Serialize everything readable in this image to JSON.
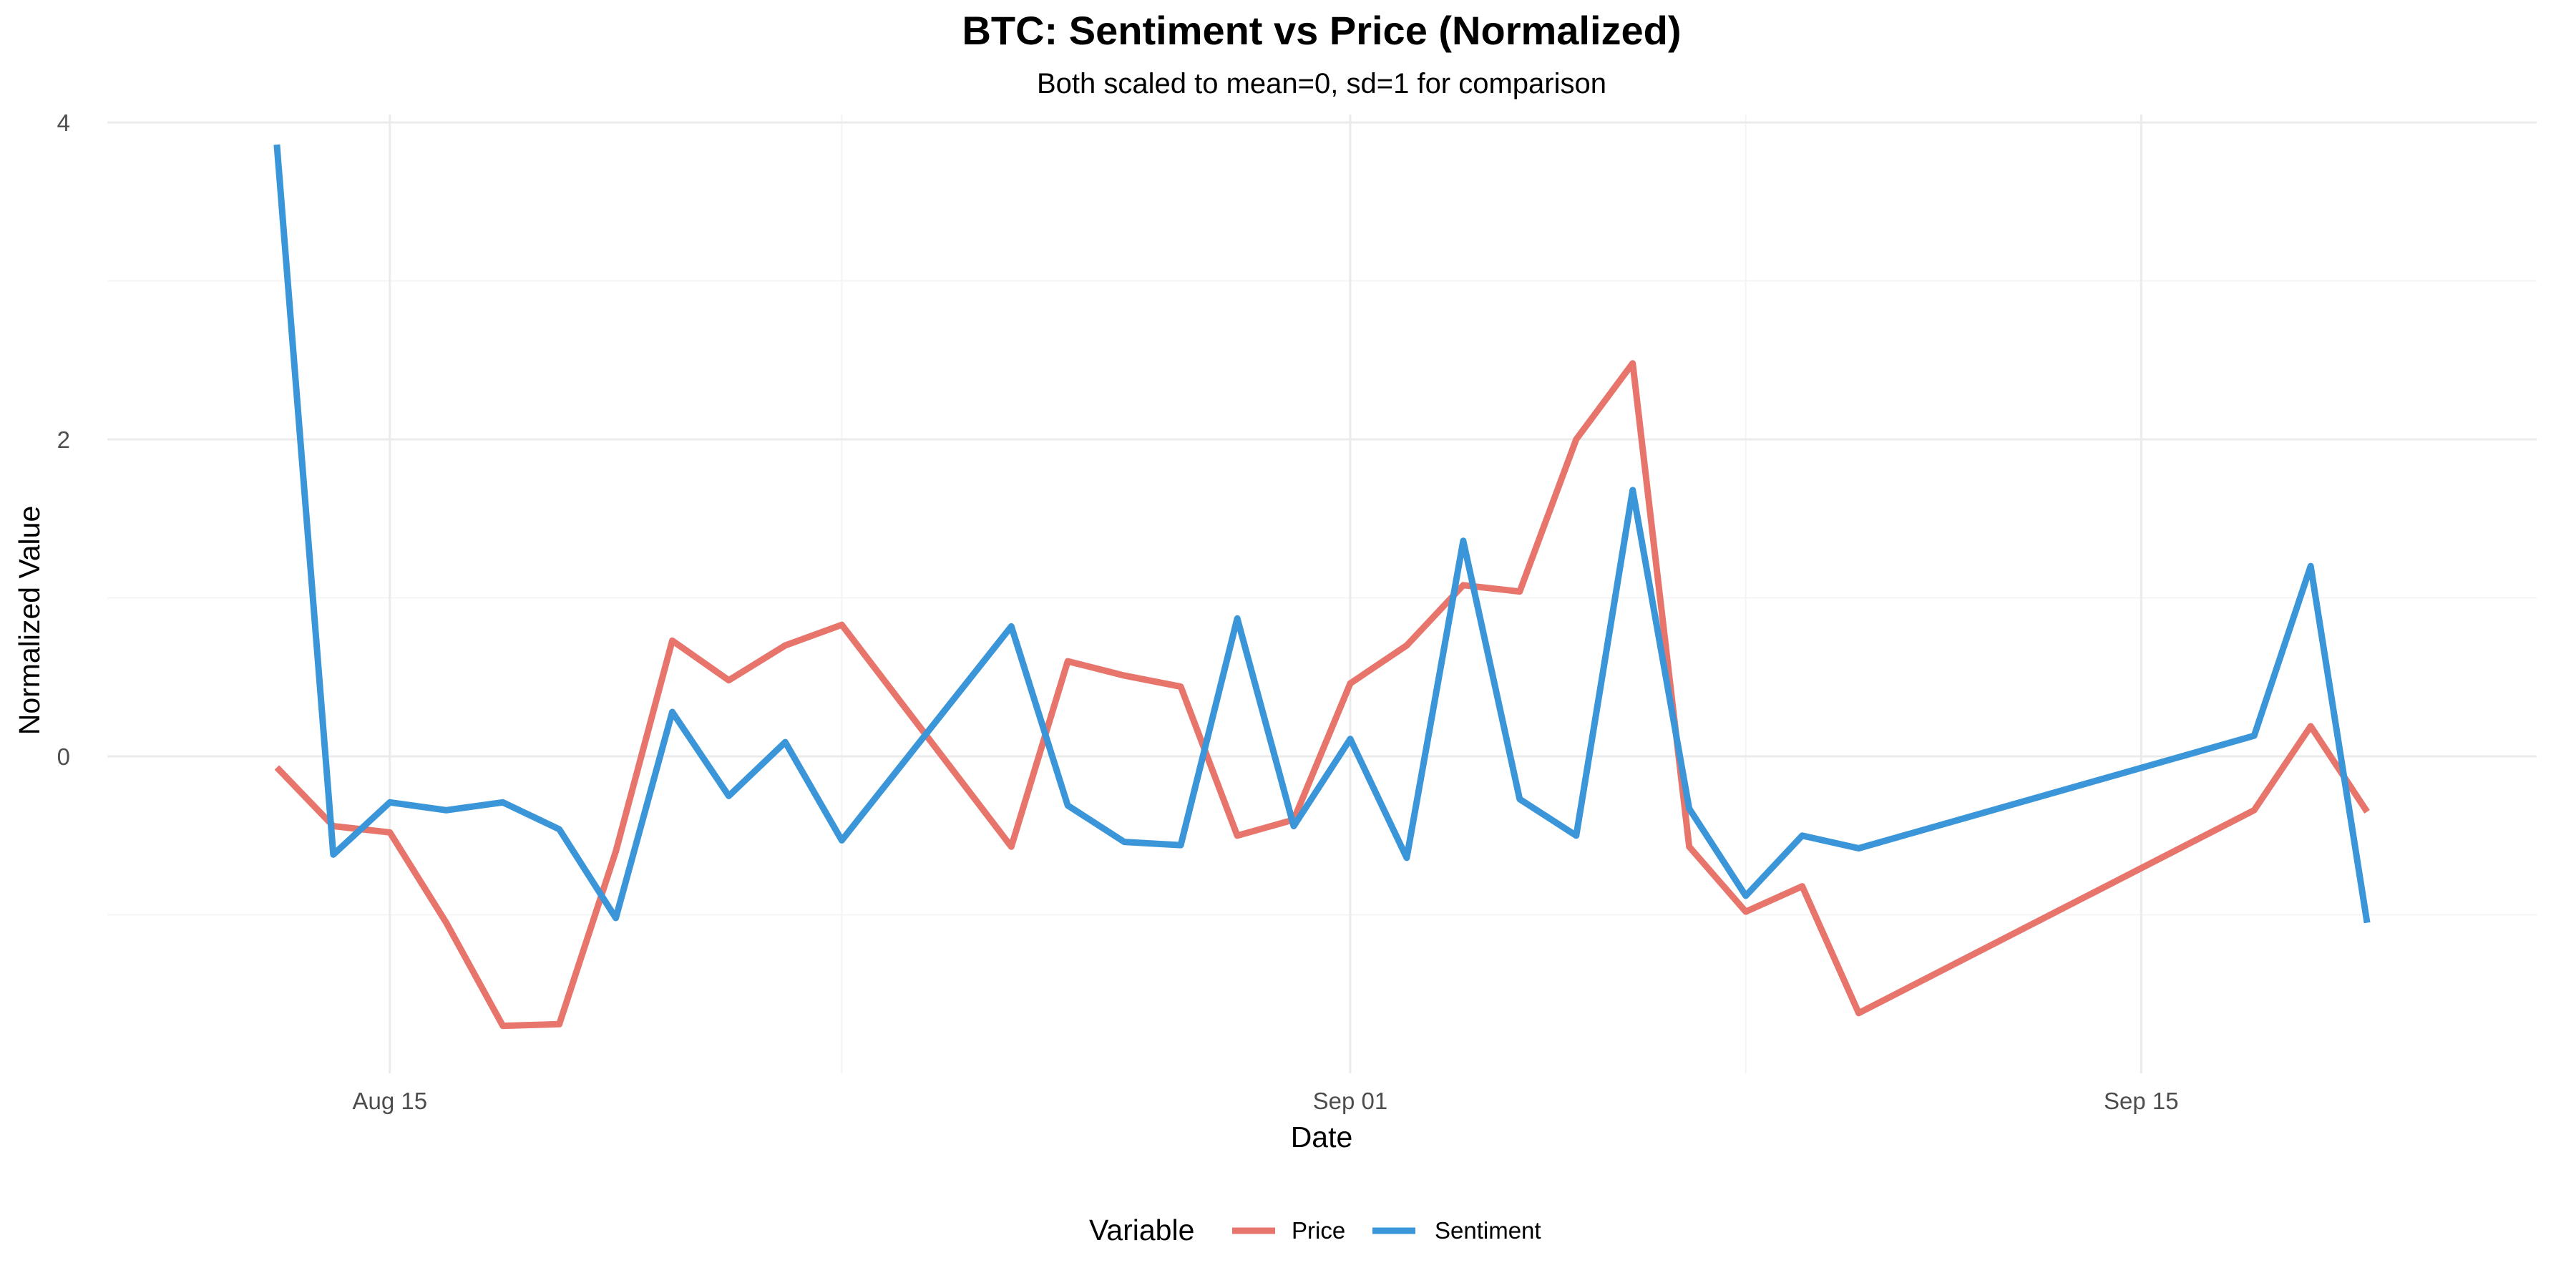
{
  "chart_data": {
    "type": "line",
    "title": "BTC: Sentiment vs Price (Normalized)",
    "subtitle": "Both scaled to mean=0, sd=1 for comparison",
    "xlabel": "Date",
    "ylabel": "Normalized Value",
    "x_type": "date",
    "xlim": [
      "2025-08-10",
      "2025-09-22"
    ],
    "ylim": [
      -2.0,
      4.05
    ],
    "x_ticks": [
      {
        "date": "2025-08-15",
        "label": "Aug 15"
      },
      {
        "date": "2025-09-01",
        "label": "Sep 01"
      },
      {
        "date": "2025-09-15",
        "label": "Sep 15"
      }
    ],
    "x_minor_ticks": [
      "2025-08-23",
      "2025-09-08"
    ],
    "y_ticks": [
      0,
      2,
      4
    ],
    "y_minor_ticks": [
      -1,
      1,
      3
    ],
    "grid": true,
    "legend": {
      "title": "Variable",
      "position": "bottom"
    },
    "series": [
      {
        "name": "Price",
        "color": "#e8756c",
        "points": [
          {
            "x": "2025-08-13",
            "y": -0.07
          },
          {
            "x": "2025-08-14",
            "y": -0.44
          },
          {
            "x": "2025-08-15",
            "y": -0.48
          },
          {
            "x": "2025-08-16",
            "y": -1.05
          },
          {
            "x": "2025-08-17",
            "y": -1.7
          },
          {
            "x": "2025-08-18",
            "y": -1.69
          },
          {
            "x": "2025-08-19",
            "y": -0.6
          },
          {
            "x": "2025-08-20",
            "y": 0.73
          },
          {
            "x": "2025-08-21",
            "y": 0.48
          },
          {
            "x": "2025-08-22",
            "y": 0.7
          },
          {
            "x": "2025-08-23",
            "y": 0.83
          },
          {
            "x": "2025-08-26",
            "y": -0.57
          },
          {
            "x": "2025-08-27",
            "y": 0.6
          },
          {
            "x": "2025-08-28",
            "y": 0.51
          },
          {
            "x": "2025-08-29",
            "y": 0.44
          },
          {
            "x": "2025-08-30",
            "y": -0.5
          },
          {
            "x": "2025-08-31",
            "y": -0.4
          },
          {
            "x": "2025-09-01",
            "y": 0.46
          },
          {
            "x": "2025-09-02",
            "y": 0.7
          },
          {
            "x": "2025-09-03",
            "y": 1.08
          },
          {
            "x": "2025-09-04",
            "y": 1.04
          },
          {
            "x": "2025-09-05",
            "y": 2.0
          },
          {
            "x": "2025-09-06",
            "y": 2.48
          },
          {
            "x": "2025-09-07",
            "y": -0.57
          },
          {
            "x": "2025-09-08",
            "y": -0.98
          },
          {
            "x": "2025-09-09",
            "y": -0.82
          },
          {
            "x": "2025-09-10",
            "y": -1.62
          },
          {
            "x": "2025-09-17",
            "y": -0.34
          },
          {
            "x": "2025-09-18",
            "y": 0.19
          },
          {
            "x": "2025-09-19",
            "y": -0.35
          }
        ]
      },
      {
        "name": "Sentiment",
        "color": "#3a96d8",
        "points": [
          {
            "x": "2025-08-13",
            "y": 3.86
          },
          {
            "x": "2025-08-14",
            "y": -0.62
          },
          {
            "x": "2025-08-15",
            "y": -0.29
          },
          {
            "x": "2025-08-16",
            "y": -0.34
          },
          {
            "x": "2025-08-17",
            "y": -0.29
          },
          {
            "x": "2025-08-18",
            "y": -0.46
          },
          {
            "x": "2025-08-19",
            "y": -1.02
          },
          {
            "x": "2025-08-20",
            "y": 0.28
          },
          {
            "x": "2025-08-21",
            "y": -0.25
          },
          {
            "x": "2025-08-22",
            "y": 0.09
          },
          {
            "x": "2025-08-23",
            "y": -0.53
          },
          {
            "x": "2025-08-26",
            "y": 0.82
          },
          {
            "x": "2025-08-27",
            "y": -0.31
          },
          {
            "x": "2025-08-28",
            "y": -0.54
          },
          {
            "x": "2025-08-29",
            "y": -0.56
          },
          {
            "x": "2025-08-30",
            "y": 0.87
          },
          {
            "x": "2025-08-31",
            "y": -0.44
          },
          {
            "x": "2025-09-01",
            "y": 0.11
          },
          {
            "x": "2025-09-02",
            "y": -0.64
          },
          {
            "x": "2025-09-03",
            "y": 1.36
          },
          {
            "x": "2025-09-04",
            "y": -0.27
          },
          {
            "x": "2025-09-05",
            "y": -0.5
          },
          {
            "x": "2025-09-06",
            "y": 1.68
          },
          {
            "x": "2025-09-07",
            "y": -0.33
          },
          {
            "x": "2025-09-08",
            "y": -0.88
          },
          {
            "x": "2025-09-09",
            "y": -0.5
          },
          {
            "x": "2025-09-10",
            "y": -0.58
          },
          {
            "x": "2025-09-17",
            "y": 0.13
          },
          {
            "x": "2025-09-18",
            "y": 1.2
          },
          {
            "x": "2025-09-19",
            "y": -1.05
          }
        ]
      }
    ]
  }
}
